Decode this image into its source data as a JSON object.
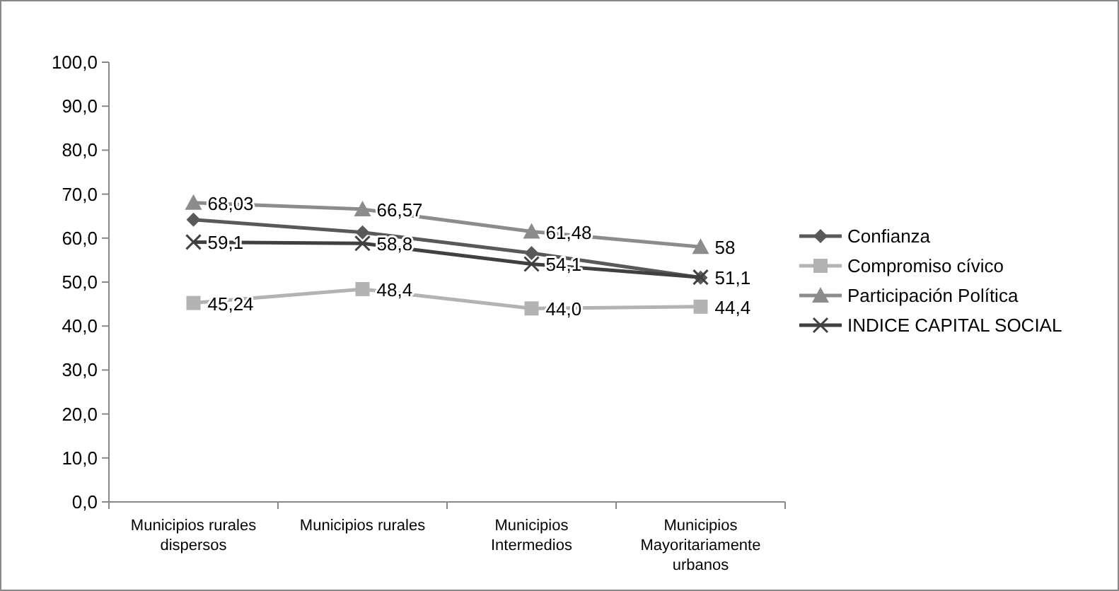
{
  "chart_data": {
    "type": "line",
    "categories": [
      "Municipios rurales dispersos",
      "Municipios rurales",
      "Municipios Intermedios",
      "Municipios Mayoritariamente urbanos"
    ],
    "ylim": [
      0,
      100
    ],
    "yticks": [
      {
        "value": 0,
        "label": "0,0"
      },
      {
        "value": 10,
        "label": "10,0"
      },
      {
        "value": 20,
        "label": "20,0"
      },
      {
        "value": 30,
        "label": "30,0"
      },
      {
        "value": 40,
        "label": "40,0"
      },
      {
        "value": 50,
        "label": "50,0"
      },
      {
        "value": 60,
        "label": "60,0"
      },
      {
        "value": 70,
        "label": "70,0"
      },
      {
        "value": 80,
        "label": "80,0"
      },
      {
        "value": 90,
        "label": "90,0"
      },
      {
        "value": 100,
        "label": "100,0"
      }
    ],
    "grid": false,
    "legend": "right",
    "series": [
      {
        "name": "Confianza",
        "color": "#595959",
        "marker": "diamond",
        "values": [
          64.2,
          61.3,
          56.6,
          51.0
        ]
      },
      {
        "name": "Compromiso cívico",
        "color": "#b3b3b3",
        "marker": "square",
        "values": [
          45.24,
          48.4,
          44.0,
          44.4
        ],
        "value_labels": [
          "45,24",
          "48,4",
          "44,0",
          "44,4"
        ]
      },
      {
        "name": "Participación Política",
        "color": "#8c8c8c",
        "marker": "triangle",
        "values": [
          68.03,
          66.57,
          61.48,
          58
        ],
        "value_labels": [
          "68,03",
          "66,57",
          "61,48",
          "58"
        ]
      },
      {
        "name": "INDICE CAPITAL SOCIAL",
        "color": "#404040",
        "marker": "cross",
        "values": [
          59.1,
          58.8,
          54.1,
          51.1
        ],
        "value_labels": [
          "59,1",
          "58,8",
          "54,1",
          "51,1"
        ]
      }
    ]
  }
}
